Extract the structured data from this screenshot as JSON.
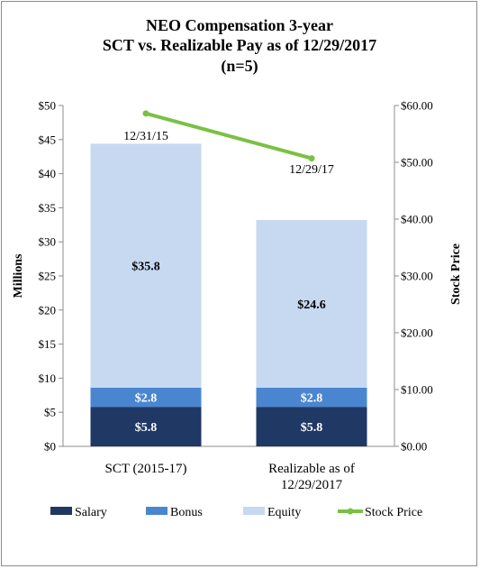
{
  "chart_data": {
    "type": "bar",
    "stacked": true,
    "title_lines": [
      "NEO Compensation 3-year",
      "SCT vs. Realizable Pay as of 12/29/2017",
      "(n=5)"
    ],
    "ylabel": "Millions",
    "y2label": "Stock Price",
    "ylim": [
      0,
      50
    ],
    "y2lim": [
      0,
      60
    ],
    "yticks": [
      "$0",
      "$5",
      "$10",
      "$15",
      "$20",
      "$25",
      "$30",
      "$35",
      "$40",
      "$45",
      "$50"
    ],
    "y2ticks": [
      "$0.00",
      "$10.00",
      "$20.00",
      "$30.00",
      "$40.00",
      "$50.00",
      "$60.00"
    ],
    "categories": [
      [
        "SCT (2015-17)"
      ],
      [
        "Realizable as of",
        "12/29/2017"
      ]
    ],
    "series": [
      {
        "name": "Salary",
        "values": [
          5.8,
          5.8
        ],
        "labels": [
          "$5.8",
          "$5.8"
        ],
        "color": "#1f3864",
        "label_color": "#ffffff"
      },
      {
        "name": "Bonus",
        "values": [
          2.8,
          2.8
        ],
        "labels": [
          "$2.8",
          "$2.8"
        ],
        "color": "#4a86d0",
        "label_color": "#ffffff"
      },
      {
        "name": "Equity",
        "values": [
          35.8,
          24.6
        ],
        "labels": [
          "$35.8",
          "$24.6"
        ],
        "color": "#c6d9f1",
        "label_color": "#000000"
      }
    ],
    "line_series": {
      "name": "Stock Price",
      "axis": "secondary",
      "values": [
        58.6,
        50.7
      ],
      "color": "#7ac143"
    },
    "annotations": [
      "12/31/15",
      "12/29/17"
    ],
    "legend_position": "bottom",
    "grid": false
  }
}
